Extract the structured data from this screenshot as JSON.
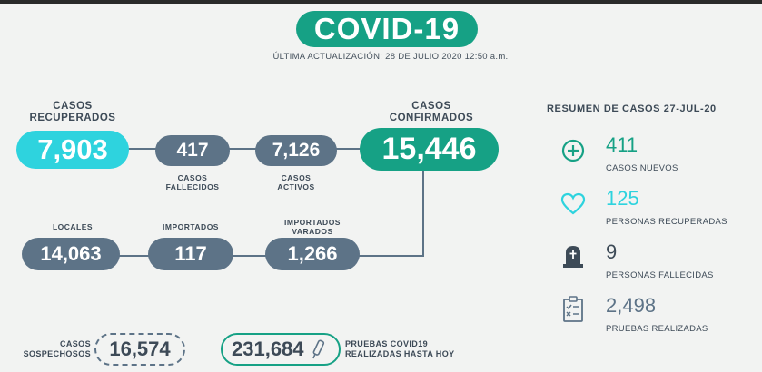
{
  "header": {
    "title": "COVID-19",
    "updated": "ÚLTIMA ACTUALIZACIÓN: 28 DE JULIO 2020 12:50 a.m."
  },
  "row1": {
    "recuperados": {
      "label_line1": "CASOS",
      "label_line2": "RECUPERADOS",
      "value": "7,903"
    },
    "fallecidos": {
      "value": "417",
      "label_line1": "CASOS",
      "label_line2": "FALLECIDOS"
    },
    "activos": {
      "value": "7,126",
      "label_line1": "CASOS",
      "label_line2": "ACTIVOS"
    },
    "confirmados": {
      "label_line1": "CASOS",
      "label_line2": "CONFIRMADOS",
      "value": "15,446"
    }
  },
  "row2": {
    "locales": {
      "label": "LOCALES",
      "value": "14,063"
    },
    "importados": {
      "label": "IMPORTADOS",
      "value": "117"
    },
    "varados": {
      "label_line1": "IMPORTADOS",
      "label_line2": "VARADOS",
      "value": "1,266"
    }
  },
  "bottom": {
    "sospechosos": {
      "label_line1": "CASOS",
      "label_line2": "SOSPECHOSOS",
      "value": "16,574"
    },
    "pruebas": {
      "value": "231,684",
      "label_line1": "PRUEBAS COVID19",
      "label_line2": "REALIZADAS HASTA HOY"
    }
  },
  "summary": {
    "title": "RESUMEN DE CASOS 27-JUL-20",
    "items": [
      {
        "icon": "plus-circle-icon",
        "color": "#16a185",
        "value": "411",
        "label": "CASOS NUEVOS"
      },
      {
        "icon": "heart-icon",
        "color": "#2ed3de",
        "value": "125",
        "label": "PERSONAS RECUPERADAS"
      },
      {
        "icon": "tombstone-icon",
        "color": "#3d4a57",
        "value": "9",
        "label": "PERSONAS FALLECIDAS"
      },
      {
        "icon": "clipboard-check-icon",
        "color": "#5d7387",
        "value": "2,498",
        "label": "PRUEBAS REALIZADAS"
      }
    ]
  },
  "colors": {
    "green": "#16a185",
    "cyan": "#2ed3de",
    "slate": "#5d7387",
    "text": "#3d4a57"
  }
}
